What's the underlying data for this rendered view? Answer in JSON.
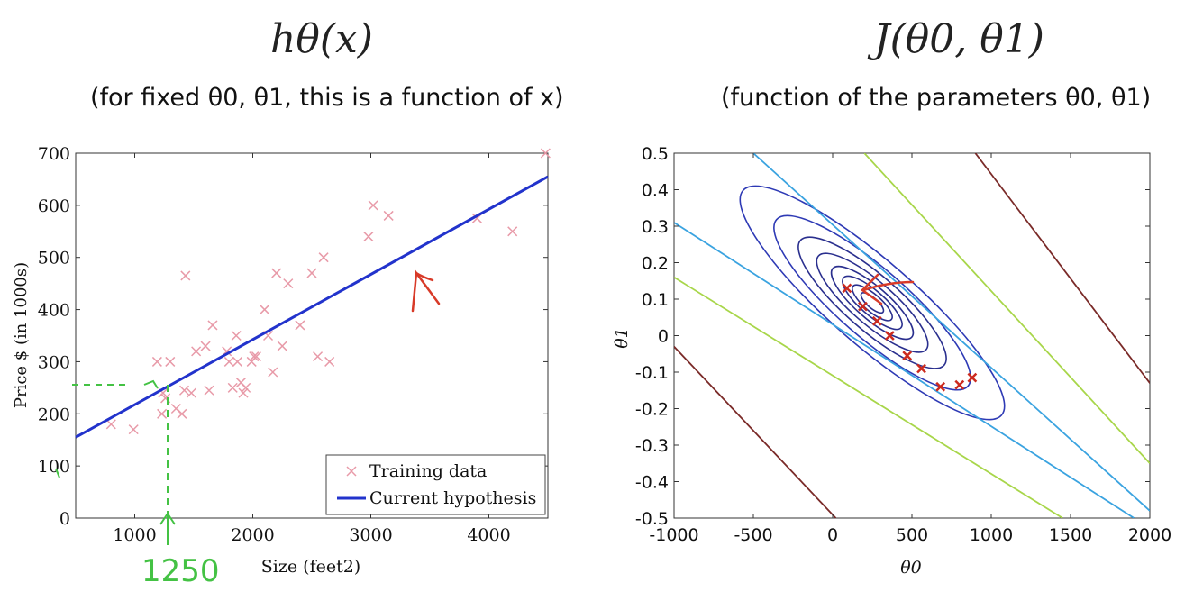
{
  "titles": {
    "left_formula": "hθ(x)",
    "right_formula": "J(θ0, θ1)",
    "left_subtitle": "(for fixed θ0, θ1, this is a function of x)",
    "right_subtitle": "(function of the parameters θ0, θ1)"
  },
  "annotations": {
    "handwritten_value": "1250"
  },
  "colors": {
    "training_marker": "#e89aa8",
    "hypothesis_line": "#2233cc",
    "ink_red": "#d83a28",
    "ink_green": "#44c244",
    "gd_marker": "#cc2a1e"
  },
  "chart_data": [
    {
      "type": "scatter",
      "title": "",
      "xlabel": "Size (feet2)",
      "ylabel": "Price $ (in 1000s)",
      "xlim": [
        500,
        4500
      ],
      "ylim": [
        0,
        700
      ],
      "xticks": [
        1000,
        2000,
        3000,
        4000
      ],
      "yticks": [
        0,
        100,
        200,
        300,
        400,
        500,
        600,
        700
      ],
      "legend": {
        "position": "bottom-right",
        "entries": [
          "Training data",
          "Current hypothesis"
        ]
      },
      "series": [
        {
          "name": "Training data",
          "marker": "x",
          "points": [
            [
              800,
              180
            ],
            [
              990,
              170
            ],
            [
              1190,
              300
            ],
            [
              1230,
              200
            ],
            [
              1240,
              240
            ],
            [
              1260,
              230
            ],
            [
              1300,
              300
            ],
            [
              1350,
              210
            ],
            [
              1400,
              200
            ],
            [
              1420,
              245
            ],
            [
              1430,
              465
            ],
            [
              1480,
              240
            ],
            [
              1520,
              320
            ],
            [
              1600,
              330
            ],
            [
              1630,
              245
            ],
            [
              1660,
              370
            ],
            [
              1780,
              320
            ],
            [
              1800,
              300
            ],
            [
              1830,
              250
            ],
            [
              1860,
              350
            ],
            [
              1870,
              300
            ],
            [
              1900,
              260
            ],
            [
              1920,
              240
            ],
            [
              1940,
              250
            ],
            [
              1990,
              300
            ],
            [
              2010,
              310
            ],
            [
              2030,
              310
            ],
            [
              2100,
              400
            ],
            [
              2130,
              350
            ],
            [
              2170,
              280
            ],
            [
              2200,
              470
            ],
            [
              2250,
              330
            ],
            [
              2300,
              450
            ],
            [
              2400,
              370
            ],
            [
              2500,
              470
            ],
            [
              2550,
              310
            ],
            [
              2600,
              500
            ],
            [
              2650,
              300
            ],
            [
              2980,
              540
            ],
            [
              3020,
              600
            ],
            [
              3150,
              580
            ],
            [
              3900,
              575
            ],
            [
              4200,
              550
            ],
            [
              4480,
              700
            ]
          ]
        },
        {
          "name": "Current hypothesis",
          "type": "line",
          "points": [
            [
              500,
              155
            ],
            [
              4500,
              655
            ]
          ]
        }
      ]
    },
    {
      "type": "contour",
      "title": "",
      "xlabel": "θ0",
      "ylabel": "θ1",
      "xlim": [
        -1000,
        2000
      ],
      "ylim": [
        -0.5,
        0.5
      ],
      "xticks": [
        -1000,
        -500,
        0,
        500,
        1000,
        1500,
        2000
      ],
      "yticks": [
        -0.5,
        -0.4,
        -0.3,
        -0.2,
        -0.1,
        0,
        0.1,
        0.2,
        0.3,
        0.4,
        0.5
      ],
      "contour_center": [
        250,
        0.09
      ],
      "contour_levels": [
        {
          "a": 90,
          "b": 0.025,
          "color": "#2a2f8e"
        },
        {
          "a": 160,
          "b": 0.042,
          "color": "#2a2f8e"
        },
        {
          "a": 240,
          "b": 0.06,
          "color": "#2a2f8e"
        },
        {
          "a": 330,
          "b": 0.08,
          "color": "#2a2f8e"
        },
        {
          "a": 450,
          "b": 0.105,
          "color": "#2a2f8e"
        },
        {
          "a": 600,
          "b": 0.135,
          "color": "#2a2f8e"
        },
        {
          "a": 800,
          "b": 0.17,
          "color": "#2e3ab5"
        },
        {
          "a": 1080,
          "b": 0.21,
          "color": "#2e3ab5"
        }
      ],
      "contour_lines": [
        {
          "color": "#3aa3e0",
          "points": [
            [
              -1000,
              0.31
            ],
            [
              1900,
              -0.5
            ]
          ]
        },
        {
          "color": "#3aa3e0",
          "points": [
            [
              -500,
              0.5
            ],
            [
              2000,
              -0.48
            ]
          ]
        },
        {
          "color": "#a8d64a",
          "points": [
            [
              -1000,
              0.16
            ],
            [
              1450,
              -0.5
            ]
          ]
        },
        {
          "color": "#a8d64a",
          "points": [
            [
              200,
              0.5
            ],
            [
              2000,
              -0.35
            ]
          ]
        },
        {
          "color": "#7a2a28",
          "points": [
            [
              -1000,
              -0.03
            ],
            [
              20,
              -0.5
            ]
          ]
        },
        {
          "color": "#7a2a28",
          "points": [
            [
              900,
              0.5
            ],
            [
              2000,
              -0.13
            ]
          ]
        }
      ],
      "gradient_descent_points": [
        [
          90,
          0.13
        ],
        [
          190,
          0.08
        ],
        [
          280,
          0.04
        ],
        [
          360,
          0.0
        ],
        [
          470,
          -0.055
        ],
        [
          560,
          -0.09
        ],
        [
          680,
          -0.14
        ],
        [
          800,
          -0.135
        ],
        [
          880,
          -0.115
        ]
      ]
    }
  ]
}
